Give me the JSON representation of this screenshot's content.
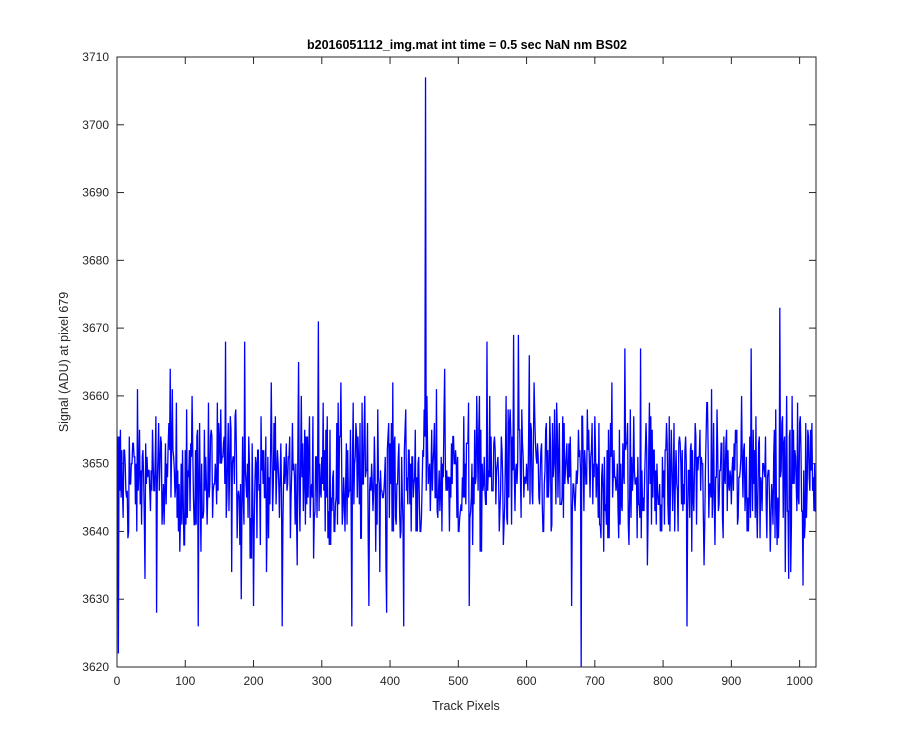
{
  "chart_data": {
    "type": "line",
    "title": "b2016051112_img.mat int time = 0.5 sec  NaN nm BS02",
    "xlabel": "Track Pixels",
    "ylabel": "Signal (ADU) at pixel 679",
    "xlim": [
      0,
      1024
    ],
    "ylim": [
      3620,
      3710
    ],
    "xticks": [
      0,
      100,
      200,
      300,
      400,
      500,
      600,
      700,
      800,
      900,
      1000
    ],
    "yticks": [
      3620,
      3630,
      3640,
      3650,
      3660,
      3670,
      3680,
      3690,
      3700,
      3710
    ],
    "grid": false,
    "legend": "none",
    "line_color": "#0000ff",
    "series": [
      {
        "points_total": 1024,
        "baseline": 3648,
        "noise_range": [
          3626,
          3669
        ],
        "notable_points": [
          {
            "x": 1,
            "y": 3622
          },
          {
            "x": 57,
            "y": 3628
          },
          {
            "x": 77,
            "y": 3664
          },
          {
            "x": 118,
            "y": 3626
          },
          {
            "x": 158,
            "y": 3668
          },
          {
            "x": 181,
            "y": 3630
          },
          {
            "x": 186,
            "y": 3668
          },
          {
            "x": 199,
            "y": 3629
          },
          {
            "x": 241,
            "y": 3626
          },
          {
            "x": 265,
            "y": 3665
          },
          {
            "x": 294,
            "y": 3671
          },
          {
            "x": 343,
            "y": 3626
          },
          {
            "x": 368,
            "y": 3629
          },
          {
            "x": 394,
            "y": 3628
          },
          {
            "x": 419,
            "y": 3626
          },
          {
            "x": 451,
            "y": 3707
          },
          {
            "x": 479,
            "y": 3664
          },
          {
            "x": 515,
            "y": 3629
          },
          {
            "x": 541,
            "y": 3668
          },
          {
            "x": 580,
            "y": 3669
          },
          {
            "x": 587,
            "y": 3669
          },
          {
            "x": 603,
            "y": 3666
          },
          {
            "x": 665,
            "y": 3629
          },
          {
            "x": 679,
            "y": 3620
          },
          {
            "x": 743,
            "y": 3667
          },
          {
            "x": 766,
            "y": 3667
          },
          {
            "x": 834,
            "y": 3626
          },
          {
            "x": 928,
            "y": 3667
          },
          {
            "x": 970,
            "y": 3673
          },
          {
            "x": 983,
            "y": 3633
          },
          {
            "x": 1004,
            "y": 3632
          }
        ]
      }
    ]
  }
}
